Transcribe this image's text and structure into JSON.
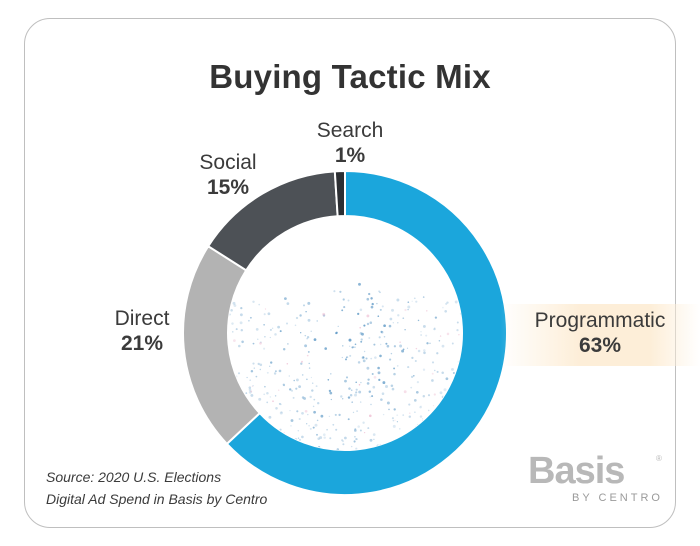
{
  "chart_data": {
    "type": "pie",
    "title": "Buying Tactic Mix",
    "categories": [
      "Programmatic",
      "Direct",
      "Social",
      "Search"
    ],
    "values": [
      63,
      21,
      15,
      1
    ],
    "value_labels": [
      "63%",
      "21%",
      "15%",
      "1%"
    ],
    "colors": [
      "#1ba6dc",
      "#b3b3b3",
      "#4d5156",
      "#2c2f33"
    ],
    "donut": true,
    "highlighted": "Programmatic"
  },
  "footer": {
    "source_line1": "Source: 2020 U.S. Elections",
    "source_line2": "Digital Ad Spend in Basis by Centro"
  },
  "logo": {
    "brand": "Basis",
    "registered": "®",
    "sub": "BY CENTRO"
  }
}
